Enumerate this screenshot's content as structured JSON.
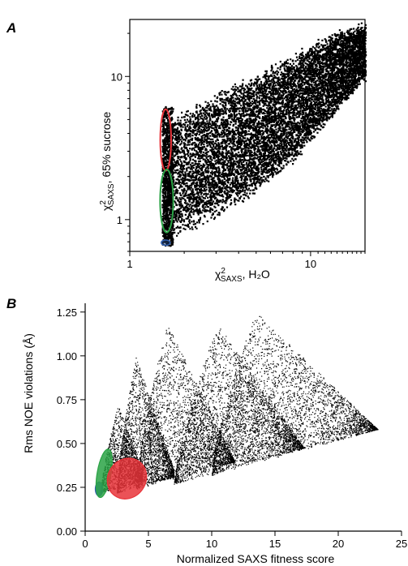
{
  "chart_data": [
    {
      "panel": "A",
      "type": "scatter",
      "scale": "log-log",
      "xlabel": {
        "main": "χ",
        "sup": "2",
        "sub": "SAXS",
        "rest": ", H₂O"
      },
      "ylabel": {
        "main": "χ",
        "sup": "2",
        "sub": "SAXS",
        "rest": ", 65% sucrose"
      },
      "xlim": [
        1,
        20
      ],
      "ylim": [
        0.6,
        25
      ],
      "xticks": [
        1,
        10
      ],
      "xtick_labels": [
        "1",
        "10"
      ],
      "yticks": [
        1,
        10
      ],
      "ytick_labels": [
        "1",
        "10"
      ],
      "point_color": "#000000",
      "cloud": {
        "x_range": [
          1.5,
          20
        ],
        "y_min_at_xmin": 0.65,
        "y_band": [
          [
            1.5,
            0.65,
            5.5
          ],
          [
            2,
            0.8,
            6
          ],
          [
            3,
            1.0,
            8
          ],
          [
            5,
            1.5,
            11
          ],
          [
            8,
            2.5,
            15
          ],
          [
            12,
            4.5,
            20
          ],
          [
            19,
            9,
            24
          ]
        ]
      },
      "highlights": [
        {
          "color": "#e8343a",
          "center": [
            1.58,
            3.6
          ],
          "x_span": [
            1.48,
            1.7
          ],
          "y_span": [
            2.2,
            5.9
          ]
        },
        {
          "color": "#2aa345",
          "center": [
            1.6,
            1.35
          ],
          "x_span": [
            1.48,
            1.75
          ],
          "y_span": [
            0.8,
            2.2
          ]
        },
        {
          "color": "#2f5fb0",
          "center": [
            1.58,
            0.69
          ],
          "x_span": [
            1.5,
            1.68
          ],
          "y_span": [
            0.66,
            0.72
          ]
        }
      ]
    },
    {
      "panel": "B",
      "type": "scatter",
      "xlabel": "Normalized SAXS fitness score",
      "ylabel": "Rms NOE violations (Å)",
      "xlim": [
        0,
        25
      ],
      "ylim": [
        0,
        1.3
      ],
      "xticks": [
        0,
        5,
        10,
        15,
        20,
        25
      ],
      "xtick_labels": [
        "0",
        "5",
        "10",
        "15",
        "20",
        "25"
      ],
      "yticks": [
        0,
        0.25,
        0.5,
        0.75,
        1.0,
        1.25
      ],
      "ytick_labels": [
        "0.00",
        "0.25",
        "0.50",
        "0.75",
        "1.00",
        "1.25"
      ],
      "point_color": "#000000",
      "clusters": [
        {
          "x_range": [
            1.2,
            4.5
          ],
          "peak_x": 2.6,
          "peak_y": 0.72,
          "base_y": 0.2
        },
        {
          "x_range": [
            2.5,
            7
          ],
          "peak_x": 4,
          "peak_y": 1.0,
          "base_y": 0.2
        },
        {
          "x_range": [
            4,
            12
          ],
          "peak_x": 6.5,
          "peak_y": 1.18,
          "base_y": 0.22
        },
        {
          "x_range": [
            7,
            18
          ],
          "peak_x": 10.5,
          "peak_y": 1.18,
          "base_y": 0.25
        },
        {
          "x_range": [
            10,
            25
          ],
          "peak_x": 13.5,
          "peak_y": 1.25,
          "base_y": 0.3
        }
      ],
      "highlights": [
        {
          "color": "#2f5fb0",
          "center": [
            1.1,
            0.24
          ],
          "rx": 0.3,
          "ry": 0.04
        },
        {
          "color": "#2aa345",
          "center": [
            1.5,
            0.33
          ],
          "rx": 0.55,
          "ry": 0.14
        },
        {
          "color": "#e8343a",
          "center": [
            3.3,
            0.3
          ],
          "rx": 1.5,
          "ry": 0.12
        }
      ]
    }
  ]
}
